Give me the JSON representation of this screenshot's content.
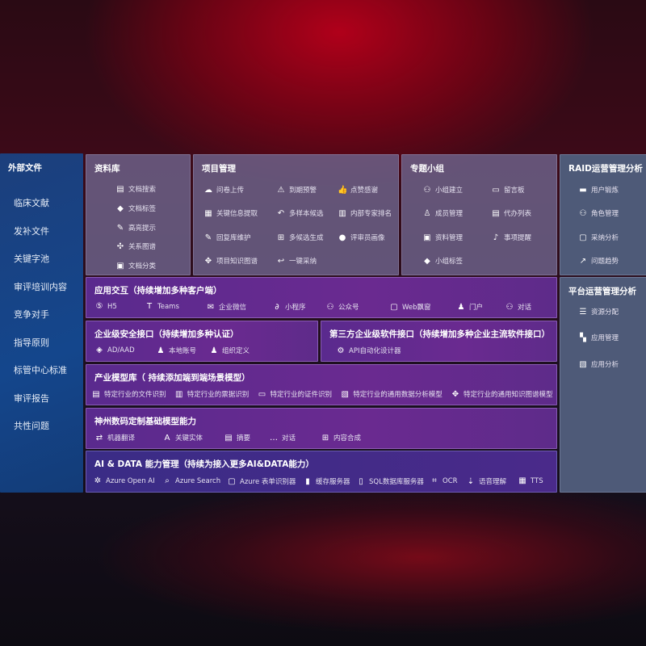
{
  "sidebar": {
    "title": "外部文件",
    "items": [
      "临床文献",
      "发补文件",
      "关键字池",
      "审评培训内容",
      "竞争对手",
      "指导原则",
      "标管中心标准",
      "审评报告",
      "共性问题"
    ]
  },
  "panels": {
    "library": {
      "title": "资料库",
      "items": [
        {
          "icon": "doc-search-icon",
          "label": "文档搜索"
        },
        {
          "icon": "tag-icon",
          "label": "文档标签"
        },
        {
          "icon": "pen-icon",
          "label": "高亮提示"
        },
        {
          "icon": "graph-icon",
          "label": "关系图谱"
        },
        {
          "icon": "doc-classify-icon",
          "label": "文档分类"
        }
      ]
    },
    "project": {
      "title": "项目管理",
      "items": [
        {
          "icon": "cloud-upload-icon",
          "label": "问卷上传"
        },
        {
          "icon": "alarm-icon",
          "label": "到期预警"
        },
        {
          "icon": "thumbs-up-icon",
          "label": "点赞感谢"
        },
        {
          "icon": "card-icon",
          "label": "关键信息提取"
        },
        {
          "icon": "reply-all-icon",
          "label": "多样本候选"
        },
        {
          "icon": "ranking-icon",
          "label": "内部专家排名"
        },
        {
          "icon": "edit-icon",
          "label": "回复库维护"
        },
        {
          "icon": "puzzle-icon",
          "label": "多候选生成"
        },
        {
          "icon": "user-icon",
          "label": "评审员画像"
        },
        {
          "icon": "network-icon",
          "label": "项目知识图谱"
        },
        {
          "icon": "reply-icon",
          "label": "一键采纳"
        }
      ]
    },
    "group": {
      "title": "专题小组",
      "items": [
        {
          "icon": "group-icon",
          "label": "小组建立"
        },
        {
          "icon": "bbs-icon",
          "label": "留言板"
        },
        {
          "icon": "member-icon",
          "label": "成员管理"
        },
        {
          "icon": "clipboard-icon",
          "label": "代办列表"
        },
        {
          "icon": "folder-icon",
          "label": "资料管理"
        },
        {
          "icon": "bell-icon",
          "label": "事项提醒"
        },
        {
          "icon": "tag-icon",
          "label": "小组标签"
        }
      ]
    },
    "raid": {
      "title": "RAID运营管理分析",
      "items": [
        {
          "icon": "id-card-icon",
          "label": "用户锻炼"
        },
        {
          "icon": "users-icon",
          "label": "角色管理"
        },
        {
          "icon": "qa-icon",
          "label": "采纳分析"
        },
        {
          "icon": "trend-icon",
          "label": "问题趋势"
        }
      ]
    },
    "platform": {
      "title": "平台运营管理分析",
      "items": [
        {
          "icon": "checklist-icon",
          "label": "资源分配"
        },
        {
          "icon": "apps-icon",
          "label": "应用管理"
        },
        {
          "icon": "chart-icon",
          "label": "应用分析"
        }
      ]
    },
    "interaction": {
      "title": "应用交互（持续增加多种客户端）",
      "items": [
        {
          "icon": "html5-icon",
          "label": "H5"
        },
        {
          "icon": "teams-icon",
          "label": "Teams"
        },
        {
          "icon": "wecom-icon",
          "label": "企业微信"
        },
        {
          "icon": "miniprogram-icon",
          "label": "小程序"
        },
        {
          "icon": "official-account-icon",
          "label": "公众号"
        },
        {
          "icon": "window-icon",
          "label": "Web飘窗"
        },
        {
          "icon": "portal-icon",
          "label": "门户"
        },
        {
          "icon": "chat-users-icon",
          "label": "对话"
        }
      ]
    },
    "security": {
      "title": "企业级安全接口（持续增加多种认证）",
      "items": [
        {
          "icon": "ad-icon",
          "label": "AD/AAD"
        },
        {
          "icon": "account-icon",
          "label": "本地账号"
        },
        {
          "icon": "org-icon",
          "label": "组织定义"
        }
      ]
    },
    "thirdparty": {
      "title": "第三方企业级软件接口（持续增加多种企业主流软件接口）",
      "items": [
        {
          "icon": "gear-icon",
          "label": "API自动化设计器"
        }
      ]
    },
    "industry": {
      "title": "产业模型库（ 持续添加端到端场景模型）",
      "items": [
        {
          "icon": "file-icon",
          "label": "特定行业的文件识别"
        },
        {
          "icon": "receipt-icon",
          "label": "特定行业的票据识别"
        },
        {
          "icon": "id-icon",
          "label": "特定行业的证件识别"
        },
        {
          "icon": "data-analysis-icon",
          "label": "特定行业的通用数据分析模型"
        },
        {
          "icon": "knowledge-graph-icon",
          "label": "特定行业的通用知识图谱模型"
        }
      ]
    },
    "foundation": {
      "title": "神州数码定制基础模型能力",
      "items": [
        {
          "icon": "translate-icon",
          "label": "机器翻译"
        },
        {
          "icon": "entity-icon",
          "label": "关键实体"
        },
        {
          "icon": "summary-icon",
          "label": "摘要"
        },
        {
          "icon": "dialog-icon",
          "label": "对话"
        },
        {
          "icon": "synthesis-icon",
          "label": "内容合成"
        }
      ]
    },
    "aidata": {
      "title": "AI & DATA 能力管理（持续为接入更多AI&DATA能力）",
      "items": [
        {
          "icon": "openai-icon",
          "label": "Azure Open AI"
        },
        {
          "icon": "search-icon",
          "label": "Azure Search"
        },
        {
          "icon": "form-recognizer-icon",
          "label": "Azure 表单识别器"
        },
        {
          "icon": "cache-icon",
          "label": "缓存服务器"
        },
        {
          "icon": "sql-icon",
          "label": "SQL数据库服务器"
        },
        {
          "icon": "ocr-icon",
          "label": "OCR"
        },
        {
          "icon": "speech-icon",
          "label": "语音理解"
        },
        {
          "icon": "tts-icon",
          "label": "TTS"
        }
      ]
    }
  }
}
